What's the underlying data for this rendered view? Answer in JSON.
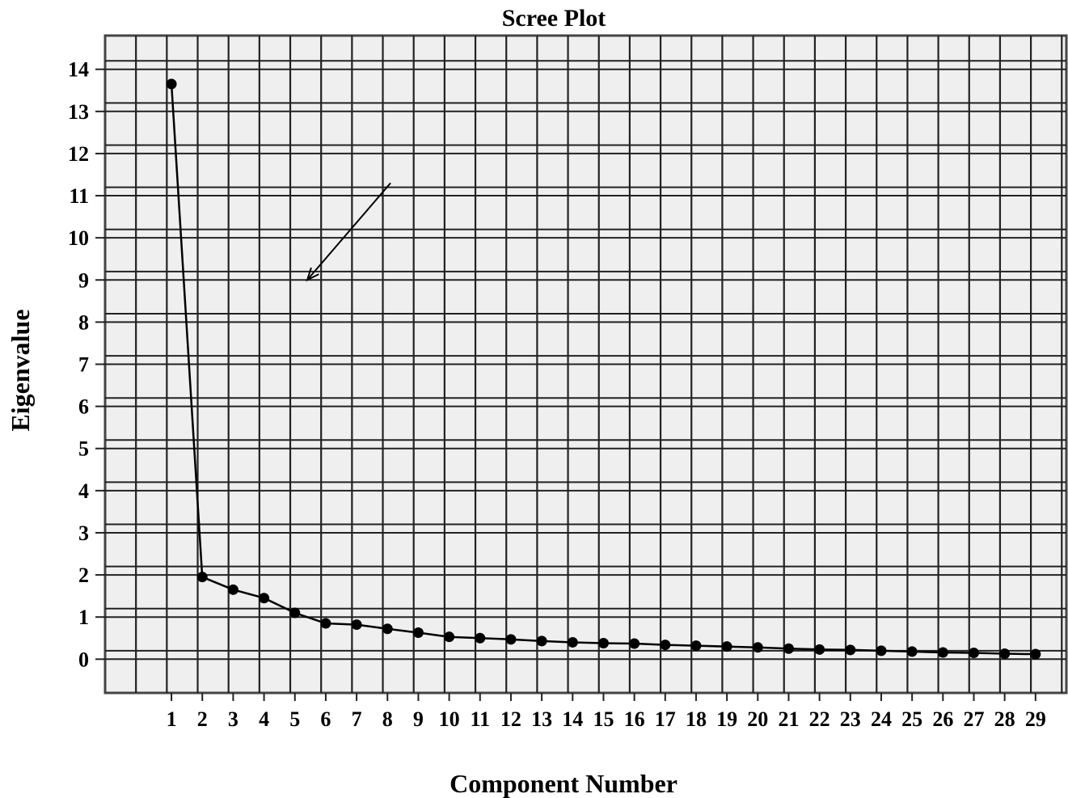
{
  "chart_data": {
    "type": "line",
    "title": "Scree Plot",
    "xlabel": "Component Number",
    "ylabel": "Eigenvalue",
    "x": [
      1,
      2,
      3,
      4,
      5,
      6,
      7,
      8,
      9,
      10,
      11,
      12,
      13,
      14,
      15,
      16,
      17,
      18,
      19,
      20,
      21,
      22,
      23,
      24,
      25,
      26,
      27,
      28,
      29
    ],
    "series": [
      {
        "values": [
          13.65,
          1.95,
          1.65,
          1.45,
          1.1,
          0.85,
          0.82,
          0.72,
          0.63,
          0.53,
          0.5,
          0.47,
          0.43,
          0.4,
          0.38,
          0.37,
          0.34,
          0.32,
          0.3,
          0.28,
          0.25,
          0.23,
          0.22,
          0.2,
          0.18,
          0.16,
          0.15,
          0.13,
          0.12
        ]
      }
    ],
    "yticks": [
      0,
      1,
      2,
      3,
      4,
      5,
      6,
      7,
      8,
      9,
      10,
      11,
      12,
      13,
      14
    ],
    "ylim": [
      -0.8,
      14.8
    ],
    "xlim": [
      -1.15,
      30.0
    ],
    "grid": true,
    "annotation": {
      "type": "arrow",
      "from": [
        8.1,
        11.3
      ],
      "to": [
        5.4,
        9.0
      ]
    },
    "colors": {
      "background": "#efefef",
      "grid": "#222222",
      "line": "#000000",
      "marker": "#000000"
    }
  }
}
